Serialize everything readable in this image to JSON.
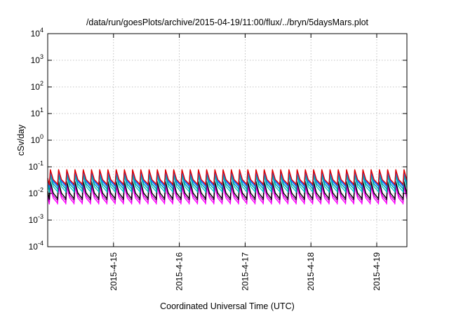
{
  "chart_data": {
    "type": "line",
    "title": "/data/run/goesPlots/archive/2015-04-19/11:00/flux/../bryn/5daysMars.plot",
    "xlabel": "Coordinated Universal Time (UTC)",
    "ylabel": "cSv/day",
    "yscale": "log",
    "ylim": [
      0.0001,
      10000
    ],
    "y_ticks": [
      {
        "base": "10",
        "exp": "-4",
        "value": 0.0001
      },
      {
        "base": "10",
        "exp": "-3",
        "value": 0.001
      },
      {
        "base": "10",
        "exp": "-2",
        "value": 0.01
      },
      {
        "base": "10",
        "exp": "-1",
        "value": 0.1
      },
      {
        "base": "10",
        "exp": "0",
        "value": 1
      },
      {
        "base": "10",
        "exp": "1",
        "value": 10
      },
      {
        "base": "10",
        "exp": "2",
        "value": 100
      },
      {
        "base": "10",
        "exp": "3",
        "value": 1000
      },
      {
        "base": "10",
        "exp": "4",
        "value": 10000
      }
    ],
    "xlim": [
      "2015-04-14 00:00",
      "2015-04-19 11:00"
    ],
    "x_ticks": [
      "2015-4-15",
      "2015-4-16",
      "2015-4-17",
      "2015-4-18",
      "2015-4-19"
    ],
    "x_tick_days": [
      1,
      2,
      3,
      4,
      5
    ],
    "grid": true,
    "legend": "none",
    "pattern": {
      "description_free": true,
      "cycle_hours": 3,
      "peak_hour_offset": 0.6
    },
    "series": [
      {
        "color": "#ff00ff",
        "peak": 0.018,
        "trough": 0.004
      },
      {
        "color": "#cc00cc",
        "peak": 0.022,
        "trough": 0.005
      },
      {
        "color": "#000000",
        "peak": 0.028,
        "trough": 0.006
      },
      {
        "color": "#00c8c8",
        "peak": 0.045,
        "trough": 0.011
      },
      {
        "color": "#00a0a0",
        "peak": 0.055,
        "trough": 0.014
      },
      {
        "color": "#1e90ff",
        "peak": 0.068,
        "trough": 0.017
      },
      {
        "color": "#2060ff",
        "peak": 0.072,
        "trough": 0.019
      },
      {
        "color": "#e00000",
        "peak": 0.078,
        "trough": 0.021
      }
    ]
  }
}
